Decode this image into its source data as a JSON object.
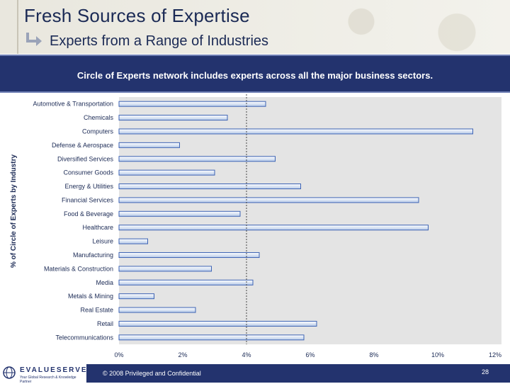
{
  "header": {
    "title": "Fresh Sources of Expertise",
    "subtitle": "Experts from a Range of Industries"
  },
  "band": {
    "text": "Circle of Experts network includes experts across all the major business sectors."
  },
  "chart_data": {
    "type": "bar",
    "orientation": "horizontal",
    "ylabel": "% of Circle of Experts by Industry",
    "xlim": [
      0,
      12
    ],
    "x_ticks": [
      "0%",
      "2%",
      "4%",
      "6%",
      "8%",
      "10%",
      "12%"
    ],
    "reference_line_x": 4,
    "grid": false,
    "categories": [
      "Automotive & Transportation",
      "Chemicals",
      "Computers",
      "Defense & Aerospace",
      "Diversified Services",
      "Consumer Goods",
      "Energy & Utilities",
      "Financial Services",
      "Food & Beverage",
      "Healthcare",
      "Leisure",
      "Manufacturing",
      "Materials & Construction",
      "Media",
      "Metals & Mining",
      "Real Estate",
      "Retail",
      "Telecommunications"
    ],
    "values": [
      4.6,
      3.4,
      11.1,
      1.9,
      4.9,
      3.0,
      5.7,
      9.4,
      3.8,
      9.7,
      0.9,
      4.4,
      2.9,
      4.2,
      1.1,
      2.4,
      6.2,
      5.8
    ],
    "colors": {
      "bar_fill_top": "#ffffff",
      "bar_fill_bottom": "#b7cae8",
      "bar_stroke": "#3d63b4",
      "plot_bg": "#e4e4e4",
      "reference_line": "#444444"
    }
  },
  "footer": {
    "logo_name": "EVALUESERVE",
    "logo_tagline": "Your Global Research & Knowledge Partner",
    "copyright": "© 2008 Privileged and Confidential",
    "page_number": "28"
  }
}
